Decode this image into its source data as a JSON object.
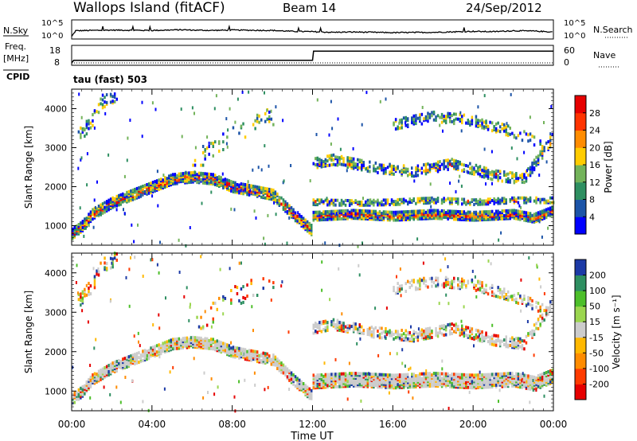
{
  "header": {
    "title": "Wallops Island (fitACF)",
    "beam": "Beam 14",
    "date": "24/Sep/2012",
    "mode": "tau (fast) 503"
  },
  "left_labels": {
    "nsky": "N.Sky",
    "freq": "Freq.",
    "freq_unit": "[MHz]",
    "cpid": "CPID"
  },
  "right_labels": {
    "nsearch": "N.Search",
    "nave": "Nave"
  },
  "x_axis": {
    "label": "Time UT",
    "ticks": [
      "00:00",
      "04:00",
      "08:00",
      "12:00",
      "16:00",
      "20:00",
      "00:00"
    ]
  },
  "chart_data": [
    {
      "type": "line",
      "name": "noise",
      "left_ticks": [
        "10^5",
        "10^0"
      ],
      "right_ticks": [
        "10^5",
        "10^0"
      ],
      "x_hours": [
        0,
        0.2,
        2,
        4,
        5.5,
        6,
        7,
        8,
        10,
        11,
        12,
        13,
        14,
        16,
        18,
        20,
        21,
        22,
        23,
        24
      ],
      "y_log10": [
        0.3,
        2.1,
        2.3,
        2.2,
        2.4,
        2.3,
        2.2,
        2.3,
        2.2,
        1.9,
        1.8,
        1.6,
        1.7,
        1.5,
        1.6,
        1.9,
        1.8,
        2.1,
        2.0,
        1.7
      ]
    },
    {
      "type": "line",
      "name": "frequency",
      "left_ticks": [
        "18",
        "8"
      ],
      "right_ticks": [
        "60",
        "0"
      ],
      "x_hours": [
        0,
        0.1,
        12,
        12.05,
        24
      ],
      "freq_mhz": [
        8.5,
        10,
        10,
        15.5,
        15.5
      ],
      "nave": [
        [
          0,
          3
        ],
        [
          24,
          3
        ]
      ]
    },
    {
      "type": "heatmap",
      "name": "power",
      "ylabel": "Slant Range [km]",
      "yticks": [
        1000,
        2000,
        3000,
        4000
      ],
      "ylim": [
        500,
        4500
      ],
      "xlim": [
        0,
        24
      ],
      "colorbar_label": "Power [dB]",
      "colorbar_ticks": [
        "4",
        "8",
        "12",
        "16",
        "20",
        "24",
        "28"
      ],
      "colors": [
        "#0000ff",
        "#1c54a8",
        "#2e8f61",
        "#73b35a",
        "#ffcc00",
        "#ff8c00",
        "#ff3300",
        "#e60000"
      ],
      "bands": [
        {
          "x": [
            0,
            0.5,
            1,
            2,
            3,
            4,
            5,
            6,
            7,
            8,
            9,
            10,
            11,
            11.9
          ],
          "y": [
            800,
            1000,
            1300,
            1600,
            1800,
            2000,
            2200,
            2250,
            2200,
            2000,
            1900,
            1800,
            1300,
            900
          ],
          "width": 260,
          "density": 0.85,
          "core": 0.45
        },
        {
          "x": [
            12,
            14,
            16,
            18,
            20,
            22,
            23,
            24
          ],
          "y": [
            1250,
            1300,
            1250,
            1300,
            1250,
            1300,
            1200,
            1400
          ],
          "width": 220,
          "density": 0.9,
          "core": 0.6
        },
        {
          "x": [
            12,
            14,
            16,
            18,
            20,
            22,
            24
          ],
          "y": [
            1600,
            1580,
            1600,
            1650,
            1600,
            1650,
            1650
          ],
          "width": 120,
          "density": 0.55,
          "core": 0.1
        },
        {
          "x": [
            12,
            13,
            15,
            17,
            19,
            21,
            22.5,
            24
          ],
          "y": [
            2600,
            2700,
            2500,
            2400,
            2600,
            2300,
            2200,
            3300
          ],
          "width": 260,
          "density": 0.45,
          "core": 0.05
        },
        {
          "x": [
            16,
            18,
            20,
            22,
            23.5
          ],
          "y": [
            3600,
            3800,
            3700,
            3400,
            3100
          ],
          "width": 260,
          "density": 0.35,
          "core": 0
        },
        {
          "x": [
            0.3,
            1,
            1.5,
            2.3
          ],
          "y": [
            3300,
            3700,
            4200,
            4400
          ],
          "width": 350,
          "density": 0.3,
          "core": 0
        },
        {
          "x": [
            6,
            7,
            8,
            9,
            10
          ],
          "y": [
            2600,
            3000,
            3400,
            3600,
            3800
          ],
          "width": 500,
          "density": 0.08,
          "core": 0
        }
      ]
    },
    {
      "type": "heatmap",
      "name": "velocity",
      "ylabel": "Slant Range [km]",
      "yticks": [
        1000,
        2000,
        3000,
        4000
      ],
      "ylim": [
        500,
        4500
      ],
      "xlim": [
        0,
        24
      ],
      "colorbar_label": "Velocity [m s⁻¹]",
      "colorbar_ticks": [
        "200",
        "100",
        "50",
        "15",
        "-15",
        "-50",
        "-100",
        "-200"
      ],
      "colors": [
        "#1c3aa6",
        "#2e8f61",
        "#4dbf2a",
        "#9bd64f",
        "#cccccc",
        "#ffb800",
        "#ff8c00",
        "#ff3b00",
        "#e60000"
      ],
      "bands": [
        {
          "x": [
            0,
            0.5,
            1,
            2,
            3,
            4,
            5,
            6,
            7,
            8,
            9,
            10,
            11,
            11.9
          ],
          "y": [
            800,
            1000,
            1300,
            1600,
            1800,
            2000,
            2200,
            2250,
            2200,
            2000,
            1900,
            1800,
            1300,
            900
          ],
          "width": 260,
          "density": 0.85,
          "core": 0.8
        },
        {
          "x": [
            12,
            14,
            16,
            18,
            20,
            22,
            23,
            24
          ],
          "y": [
            1250,
            1300,
            1250,
            1300,
            1250,
            1300,
            1200,
            1400
          ],
          "width": 340,
          "density": 0.9,
          "core": 0.85
        },
        {
          "x": [
            12,
            13,
            15,
            17,
            19,
            21,
            22.5,
            24
          ],
          "y": [
            2600,
            2700,
            2500,
            2400,
            2600,
            2300,
            2200,
            3300
          ],
          "width": 260,
          "density": 0.45,
          "core": 0.7
        },
        {
          "x": [
            16,
            18,
            20,
            22,
            23.5
          ],
          "y": [
            3600,
            3800,
            3700,
            3400,
            3100
          ],
          "width": 260,
          "density": 0.35,
          "core": 0.6
        },
        {
          "x": [
            0.3,
            1,
            1.5,
            2.3
          ],
          "y": [
            3300,
            3700,
            4200,
            4400
          ],
          "width": 350,
          "density": 0.3,
          "core": 0.1
        },
        {
          "x": [
            6,
            7,
            8,
            9,
            10
          ],
          "y": [
            2600,
            3000,
            3400,
            3600,
            3800
          ],
          "width": 500,
          "density": 0.08,
          "core": 0.2
        }
      ]
    }
  ]
}
